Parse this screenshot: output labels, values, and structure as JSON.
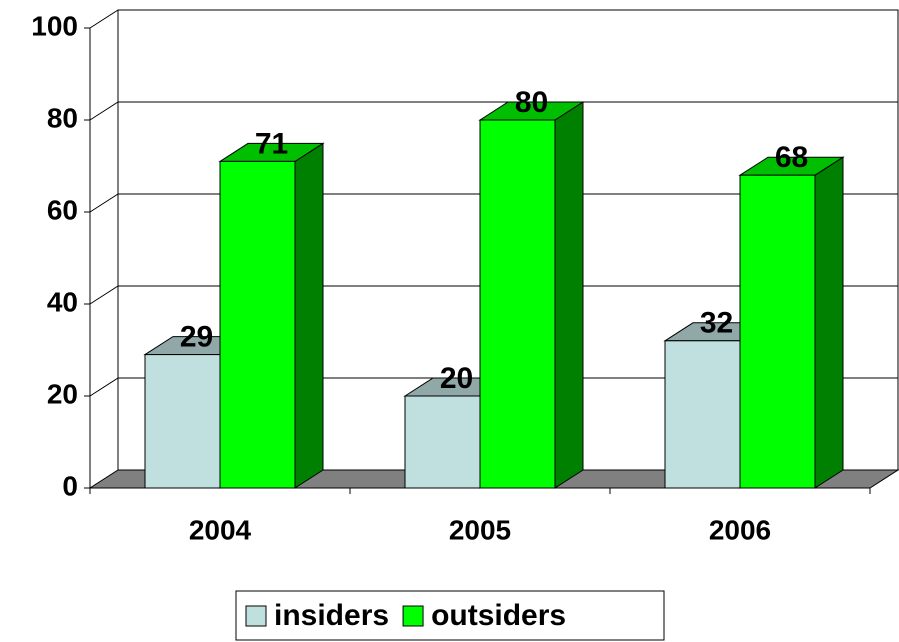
{
  "chart_data": {
    "type": "bar3d",
    "categories": [
      "2004",
      "2005",
      "2006"
    ],
    "series": [
      {
        "name": "insiders",
        "color": "#c0e0e0",
        "values": [
          29,
          20,
          32
        ]
      },
      {
        "name": "outsiders",
        "color": "#00ff00",
        "values": [
          71,
          80,
          68
        ]
      }
    ],
    "ylim": [
      0,
      100
    ],
    "yticks": [
      0,
      20,
      40,
      60,
      80,
      100
    ],
    "grid": true,
    "legend": "bottom"
  }
}
